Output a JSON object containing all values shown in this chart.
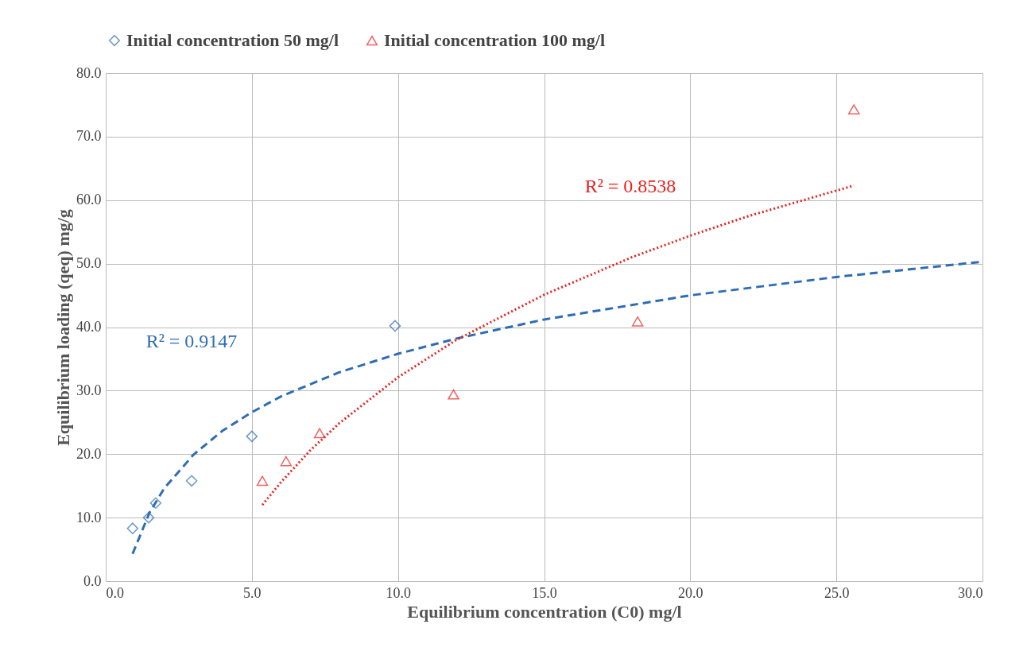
{
  "chart_data": {
    "type": "scatter",
    "xlabel": "Equilibrium concentration  (C0) mg/l",
    "ylabel": "Equilibrium loading (qeq) mg/g",
    "xlim": [
      0,
      30
    ],
    "ylim": [
      0,
      80
    ],
    "xticks": [
      {
        "value": 0,
        "label": "0.0"
      },
      {
        "value": 5,
        "label": "5.0"
      },
      {
        "value": 10,
        "label": "10.0"
      },
      {
        "value": 15,
        "label": "15.0"
      },
      {
        "value": 20,
        "label": "20.0"
      },
      {
        "value": 25,
        "label": "25.0"
      },
      {
        "value": 30,
        "label": "30.0"
      }
    ],
    "yticks": [
      {
        "value": 0,
        "label": "0.0"
      },
      {
        "value": 10,
        "label": "10.0"
      },
      {
        "value": 20,
        "label": "20.0"
      },
      {
        "value": 30,
        "label": "30.0"
      },
      {
        "value": 40,
        "label": "40.0"
      },
      {
        "value": 50,
        "label": "50.0"
      },
      {
        "value": 60,
        "label": "60.0"
      },
      {
        "value": 70,
        "label": "70.0"
      },
      {
        "value": 80,
        "label": "80.0"
      }
    ],
    "grid": true,
    "legend": "top",
    "series": [
      {
        "name": "Initial concentration 50 mg/l",
        "marker": "diamond",
        "color": "#2e6db4",
        "x": [
          0.92,
          1.47,
          1.71,
          2.94,
          5.0,
          9.9
        ],
        "values": [
          8.3,
          10.0,
          12.3,
          15.8,
          22.8,
          40.2
        ]
      },
      {
        "name": "Initial concentration 100 mg/l",
        "marker": "triangle",
        "color": "#e8201e",
        "x": [
          5.36,
          6.17,
          7.32,
          11.9,
          18.2,
          25.6
        ],
        "values": [
          15.8,
          18.9,
          23.3,
          29.4,
          40.9,
          74.3
        ]
      },
      {
        "type": "line",
        "line_style": "dashed",
        "color": "#2e6db4",
        "x": [
          0.92,
          1.5,
          2,
          3,
          4,
          5,
          6,
          8,
          10,
          12,
          15,
          20,
          25,
          30
        ],
        "values": [
          4.3,
          10.8,
          14.6,
          19.9,
          23.7,
          26.6,
          29.1,
          32.9,
          35.8,
          38.2,
          41.2,
          45.0,
          47.9,
          50.3
        ]
      },
      {
        "type": "line",
        "line_style": "dotted",
        "color": "#e8201e",
        "x": [
          5.36,
          6,
          7,
          8,
          10,
          12,
          15,
          18,
          20,
          22,
          25.6
        ],
        "values": [
          12.0,
          15.6,
          20.6,
          24.9,
          32.1,
          38.0,
          45.1,
          51.0,
          54.4,
          57.5,
          62.3
        ]
      }
    ],
    "annotations": [
      "R² = 0.9147",
      "R² = 0.8538"
    ]
  }
}
